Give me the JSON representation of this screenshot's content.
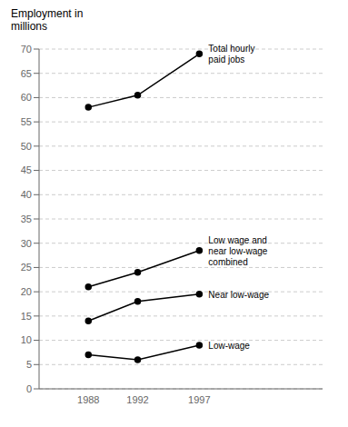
{
  "chart_data": {
    "type": "line",
    "ylabel": "Employment in\nmillions",
    "x": [
      1988,
      1992,
      1997
    ],
    "xlim": [
      1984,
      2007
    ],
    "xticks": [
      1988,
      1992,
      1997
    ],
    "ylim": [
      0,
      70
    ],
    "yticks": [
      0,
      5,
      10,
      15,
      20,
      25,
      30,
      35,
      40,
      45,
      50,
      55,
      60,
      65,
      70
    ],
    "grid": true,
    "color": "#000000",
    "marker": "circle",
    "series": [
      {
        "name": "Total hourly\npaid jobs",
        "values": [
          58,
          60.5,
          69
        ]
      },
      {
        "name": "Low wage and\nnear low-wage\ncombined",
        "values": [
          21,
          24,
          28.5
        ]
      },
      {
        "name": "Near low-wage",
        "values": [
          14,
          18,
          19.5
        ]
      },
      {
        "name": "Low-wage",
        "values": [
          7,
          6,
          9
        ]
      }
    ]
  }
}
